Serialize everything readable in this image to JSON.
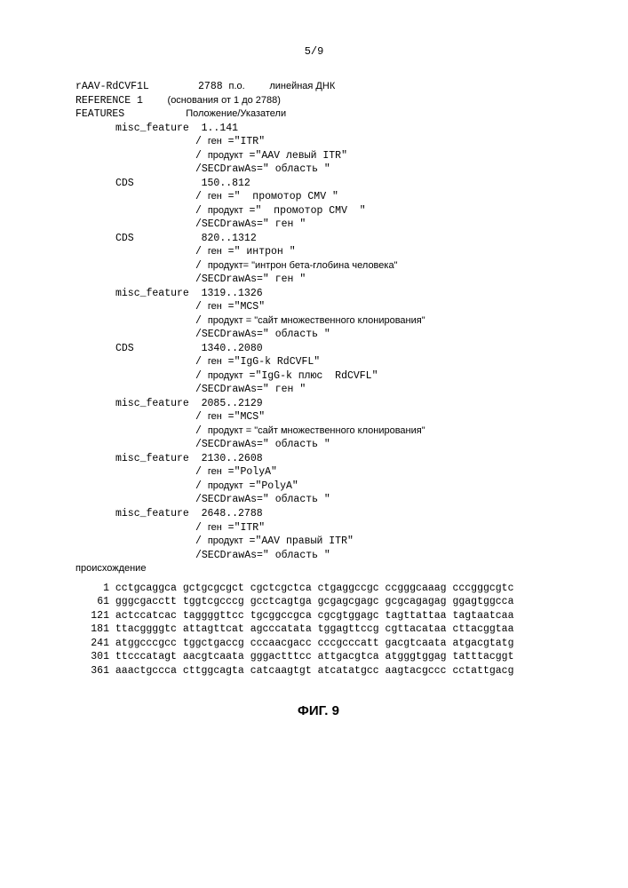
{
  "page": {
    "number": "5/9"
  },
  "header": {
    "name": "rAAV-RdCVF1L",
    "length": "2788",
    "lengthUnit": "п.о.",
    "molType": "линейная ДНК",
    "refLabel": "REFERENCE",
    "refNum": "1",
    "refRange": "(основания от 1 до 2788)",
    "featuresLabel": "FEATURES",
    "featuresHdr": "Положение/Указатели"
  },
  "features": [
    {
      "type": "misc_feature",
      "loc": "1..141",
      "gene": "\"ITR\"",
      "product": "\"AAV левый ITR\"",
      "drawAs": "\" область \""
    },
    {
      "type": "CDS",
      "loc": "150..812",
      "gene": "\"  промотор CMV \"",
      "product": "\"  промотор CMV  \"",
      "drawAs": "\" ген \""
    },
    {
      "type": "CDS",
      "loc": "820..1312",
      "gene": "\" интрон \"",
      "product": "= \"интрон бета-глобина человека\"",
      "productRaw": true,
      "drawAs": "\" ген \""
    },
    {
      "type": "misc_feature",
      "loc": "1319..1326",
      "gene": "\"MCS\"",
      "product": " = \"сайт множественного клонирования\"",
      "productRaw": true,
      "drawAs": "\" область \""
    },
    {
      "type": "CDS",
      "loc": "1340..2080",
      "gene": "\"IgG-k RdCVFL\"",
      "product": "\"IgG-k плюс  RdCVFL\"",
      "drawAs": "\" ген \""
    },
    {
      "type": "misc_feature",
      "loc": "2085..2129",
      "gene": "\"MCS\"",
      "product": " = \"сайт множественного клонирования\"",
      "productRaw": true,
      "drawAs": "\" область \""
    },
    {
      "type": "misc_feature",
      "loc": "2130..2608",
      "gene": "\"PolyA\"",
      "product": "\"PolyA\"",
      "drawAs": "\" область \""
    },
    {
      "type": "misc_feature",
      "loc": "2648..2788",
      "gene": "\"ITR\"",
      "product": "\"AAV правый ITR\"",
      "drawAs": "\" область \""
    }
  ],
  "labels": {
    "gene": "ген",
    "product": "продукт",
    "drawAs": "/SECDrawAs="
  },
  "originLabel": "происхождение",
  "sequence": [
    {
      "n": "1",
      "s": "cctgcaggca gctgcgcgct cgctcgctca ctgaggccgc ccgggcaaag cccgggcgtc"
    },
    {
      "n": "61",
      "s": "gggcgacctt tggtcgcccg gcctcagtga gcgagcgagc gcgcagagag ggagtggcca"
    },
    {
      "n": "121",
      "s": "actccatcac taggggttcc tgcggccgca cgcgtggagc tagttattaa tagtaatcaa"
    },
    {
      "n": "181",
      "s": "ttacggggtc attagttcat agcccatata tggagttccg cgttacataa cttacggtaa"
    },
    {
      "n": "241",
      "s": "atggcccgcc tggctgaccg cccaacgacc cccgcccatt gacgtcaata atgacgtatg"
    },
    {
      "n": "301",
      "s": "ttcccatagt aacgtcaata gggactttcc attgacgtca atgggtggag tatttacggt"
    },
    {
      "n": "361",
      "s": "aaactgccca cttggcagta catcaagtgt atcatatgcc aagtacgccc cctattgacg"
    }
  ],
  "figure": "ФИГ. 9"
}
